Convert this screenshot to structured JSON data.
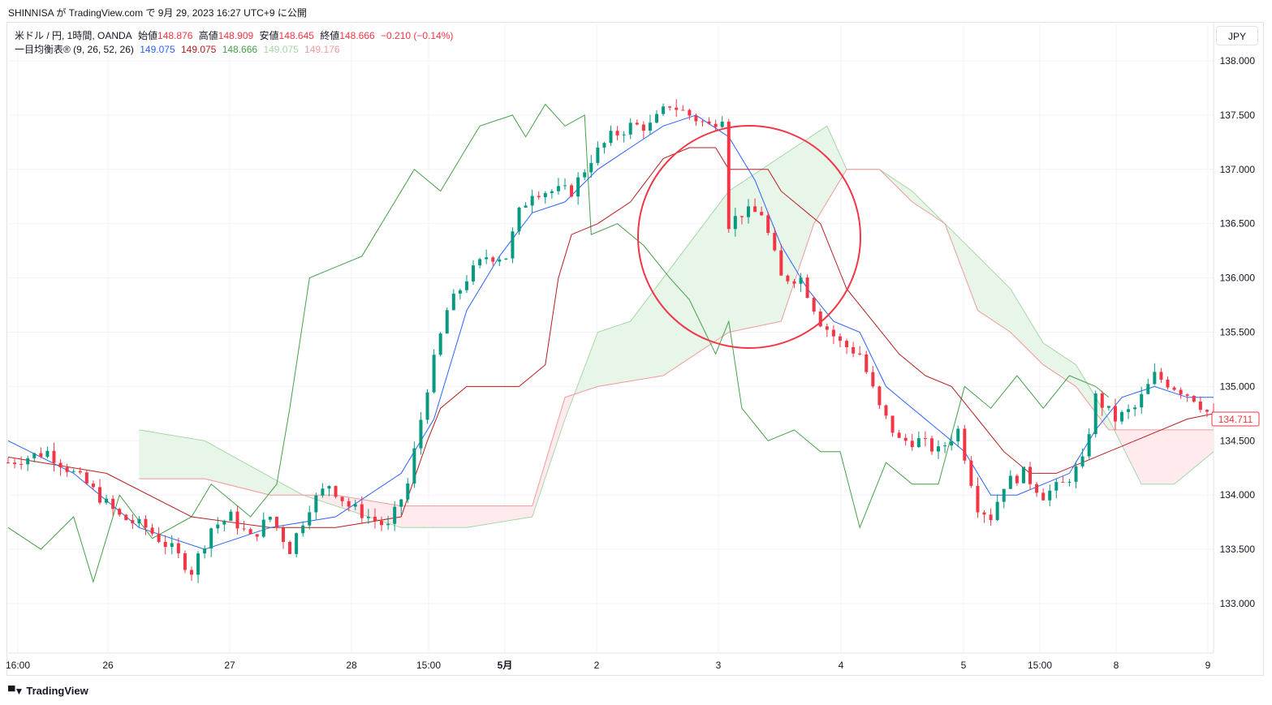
{
  "caption": "SHINNISA が TradingView.com で 9月 29, 2023 16:27 UTC+9 に公開",
  "legend": {
    "symbol": "米ドル / 円, 1時間, OANDA",
    "open_label": "始値",
    "open": "148.876",
    "high_label": "高値",
    "high": "148.909",
    "low_label": "安値",
    "low": "148.645",
    "close_label": "終値",
    "close": "148.666",
    "change": "−0.210 (−0.14%)",
    "ichimoku_name": "一目均衡表® (9, 26, 52, 26)",
    "tenkan": "149.075",
    "kijun": "149.075",
    "chikou": "148.666",
    "span_a": "149.075",
    "span_b": "149.176"
  },
  "currency_button": "JPY",
  "price_label": "134.711",
  "footer_brand": "TradingView",
  "colors": {
    "up": "#089981",
    "down": "#f23645",
    "tenkan": "#2962ff",
    "kijun": "#b71c1c",
    "chikou": "#43a047",
    "cloud_bull": "#e8f5e9",
    "cloud_bear": "#ffebee",
    "highlight_circle": "#f23645"
  },
  "chart_data": {
    "type": "candlestick",
    "title": "",
    "ylim": [
      132.6,
      138.3
    ],
    "y_ticks": [
      "133.000",
      "133.500",
      "134.000",
      "134.500",
      "135.000",
      "135.500",
      "136.000",
      "136.500",
      "137.000",
      "137.500",
      "138.000"
    ],
    "x_ticks": [
      "16:00",
      "26",
      "27",
      "28",
      "15:00",
      "5月",
      "2",
      "3",
      "4",
      "5",
      "15:00",
      "8",
      "9"
    ],
    "legend_position": "top-left",
    "grid": true,
    "annotation": "circle around the sharp drop on the 3rd",
    "close_path": [
      {
        "x": 0,
        "y": 134.3
      },
      {
        "x": 6,
        "y": 134.4
      },
      {
        "x": 12,
        "y": 134.1
      },
      {
        "x": 17,
        "y": 133.8
      },
      {
        "x": 21,
        "y": 133.7
      },
      {
        "x": 25,
        "y": 133.5
      },
      {
        "x": 28,
        "y": 133.3
      },
      {
        "x": 31,
        "y": 133.7
      },
      {
        "x": 34,
        "y": 133.8
      },
      {
        "x": 37,
        "y": 133.6
      },
      {
        "x": 40,
        "y": 133.8
      },
      {
        "x": 43,
        "y": 133.5
      },
      {
        "x": 46,
        "y": 133.9
      },
      {
        "x": 49,
        "y": 134.1
      },
      {
        "x": 52,
        "y": 133.9
      },
      {
        "x": 55,
        "y": 133.8
      },
      {
        "x": 58,
        "y": 133.7
      },
      {
        "x": 61,
        "y": 134.1
      },
      {
        "x": 64,
        "y": 135.0
      },
      {
        "x": 67,
        "y": 135.7
      },
      {
        "x": 70,
        "y": 136.0
      },
      {
        "x": 73,
        "y": 136.2
      },
      {
        "x": 76,
        "y": 136.2
      },
      {
        "x": 78,
        "y": 136.6
      },
      {
        "x": 80,
        "y": 136.8
      },
      {
        "x": 83,
        "y": 136.8
      },
      {
        "x": 86,
        "y": 136.8
      },
      {
        "x": 89,
        "y": 137.1
      },
      {
        "x": 92,
        "y": 137.3
      },
      {
        "x": 95,
        "y": 137.4
      },
      {
        "x": 98,
        "y": 137.4
      },
      {
        "x": 101,
        "y": 137.6
      },
      {
        "x": 104,
        "y": 137.5
      },
      {
        "x": 107,
        "y": 137.4
      },
      {
        "x": 109,
        "y": 137.5
      },
      {
        "x": 110,
        "y": 136.5
      },
      {
        "x": 112,
        "y": 136.6
      },
      {
        "x": 115,
        "y": 136.6
      },
      {
        "x": 118,
        "y": 136.0
      },
      {
        "x": 121,
        "y": 136.0
      },
      {
        "x": 124,
        "y": 135.6
      },
      {
        "x": 127,
        "y": 135.4
      },
      {
        "x": 130,
        "y": 135.3
      },
      {
        "x": 133,
        "y": 134.8
      },
      {
        "x": 136,
        "y": 134.5
      },
      {
        "x": 139,
        "y": 134.5
      },
      {
        "x": 142,
        "y": 134.4
      },
      {
        "x": 145,
        "y": 134.6
      },
      {
        "x": 148,
        "y": 133.9
      },
      {
        "x": 150,
        "y": 133.8
      },
      {
        "x": 152,
        "y": 134.1
      },
      {
        "x": 155,
        "y": 134.2
      },
      {
        "x": 158,
        "y": 134.0
      },
      {
        "x": 161,
        "y": 134.1
      },
      {
        "x": 164,
        "y": 134.3
      },
      {
        "x": 166,
        "y": 134.9
      },
      {
        "x": 169,
        "y": 134.7
      },
      {
        "x": 172,
        "y": 134.8
      },
      {
        "x": 175,
        "y": 135.1
      },
      {
        "x": 178,
        "y": 135.0
      },
      {
        "x": 181,
        "y": 134.9
      },
      {
        "x": 184,
        "y": 134.7
      }
    ],
    "tenkan_path": [
      {
        "x": 0,
        "y": 134.5
      },
      {
        "x": 10,
        "y": 134.2
      },
      {
        "x": 20,
        "y": 133.7
      },
      {
        "x": 30,
        "y": 133.5
      },
      {
        "x": 40,
        "y": 133.7
      },
      {
        "x": 50,
        "y": 133.8
      },
      {
        "x": 60,
        "y": 134.2
      },
      {
        "x": 65,
        "y": 134.7
      },
      {
        "x": 70,
        "y": 135.7
      },
      {
        "x": 75,
        "y": 136.2
      },
      {
        "x": 80,
        "y": 136.6
      },
      {
        "x": 85,
        "y": 136.7
      },
      {
        "x": 90,
        "y": 137.0
      },
      {
        "x": 95,
        "y": 137.2
      },
      {
        "x": 100,
        "y": 137.4
      },
      {
        "x": 105,
        "y": 137.5
      },
      {
        "x": 110,
        "y": 137.3
      },
      {
        "x": 114,
        "y": 136.9
      },
      {
        "x": 118,
        "y": 136.3
      },
      {
        "x": 122,
        "y": 135.9
      },
      {
        "x": 126,
        "y": 135.6
      },
      {
        "x": 130,
        "y": 135.5
      },
      {
        "x": 134,
        "y": 135.0
      },
      {
        "x": 138,
        "y": 134.8
      },
      {
        "x": 142,
        "y": 134.6
      },
      {
        "x": 146,
        "y": 134.4
      },
      {
        "x": 150,
        "y": 134.0
      },
      {
        "x": 154,
        "y": 134.0
      },
      {
        "x": 158,
        "y": 134.1
      },
      {
        "x": 162,
        "y": 134.2
      },
      {
        "x": 166,
        "y": 134.6
      },
      {
        "x": 170,
        "y": 134.9
      },
      {
        "x": 175,
        "y": 135.0
      },
      {
        "x": 180,
        "y": 134.9
      },
      {
        "x": 184,
        "y": 134.9
      }
    ],
    "kijun_path": [
      {
        "x": 0,
        "y": 134.35
      },
      {
        "x": 15,
        "y": 134.2
      },
      {
        "x": 28,
        "y": 133.8
      },
      {
        "x": 40,
        "y": 133.7
      },
      {
        "x": 50,
        "y": 133.7
      },
      {
        "x": 60,
        "y": 133.8
      },
      {
        "x": 64,
        "y": 134.5
      },
      {
        "x": 66,
        "y": 134.8
      },
      {
        "x": 70,
        "y": 135.0
      },
      {
        "x": 78,
        "y": 135.0
      },
      {
        "x": 82,
        "y": 135.2
      },
      {
        "x": 84,
        "y": 136.0
      },
      {
        "x": 86,
        "y": 136.4
      },
      {
        "x": 90,
        "y": 136.5
      },
      {
        "x": 95,
        "y": 136.7
      },
      {
        "x": 100,
        "y": 137.1
      },
      {
        "x": 104,
        "y": 137.2
      },
      {
        "x": 108,
        "y": 137.2
      },
      {
        "x": 110,
        "y": 137.0
      },
      {
        "x": 116,
        "y": 137.0
      },
      {
        "x": 118,
        "y": 136.8
      },
      {
        "x": 124,
        "y": 136.5
      },
      {
        "x": 128,
        "y": 135.9
      },
      {
        "x": 132,
        "y": 135.6
      },
      {
        "x": 136,
        "y": 135.3
      },
      {
        "x": 140,
        "y": 135.1
      },
      {
        "x": 144,
        "y": 135.0
      },
      {
        "x": 148,
        "y": 134.7
      },
      {
        "x": 152,
        "y": 134.4
      },
      {
        "x": 156,
        "y": 134.2
      },
      {
        "x": 160,
        "y": 134.2
      },
      {
        "x": 164,
        "y": 134.3
      },
      {
        "x": 168,
        "y": 134.4
      },
      {
        "x": 172,
        "y": 134.5
      },
      {
        "x": 176,
        "y": 134.6
      },
      {
        "x": 180,
        "y": 134.7
      },
      {
        "x": 184,
        "y": 134.75
      }
    ],
    "chikou_path": [
      {
        "x": 0,
        "y": 133.7
      },
      {
        "x": 5,
        "y": 133.5
      },
      {
        "x": 10,
        "y": 133.8
      },
      {
        "x": 13,
        "y": 133.2
      },
      {
        "x": 17,
        "y": 134.0
      },
      {
        "x": 22,
        "y": 133.6
      },
      {
        "x": 28,
        "y": 133.8
      },
      {
        "x": 31,
        "y": 134.1
      },
      {
        "x": 37,
        "y": 133.8
      },
      {
        "x": 41,
        "y": 134.1
      },
      {
        "x": 43,
        "y": 134.8
      },
      {
        "x": 46,
        "y": 136.0
      },
      {
        "x": 50,
        "y": 136.1
      },
      {
        "x": 54,
        "y": 136.2
      },
      {
        "x": 58,
        "y": 136.6
      },
      {
        "x": 62,
        "y": 137.0
      },
      {
        "x": 66,
        "y": 136.8
      },
      {
        "x": 70,
        "y": 137.2
      },
      {
        "x": 72,
        "y": 137.4
      },
      {
        "x": 77,
        "y": 137.5
      },
      {
        "x": 79,
        "y": 137.3
      },
      {
        "x": 82,
        "y": 137.6
      },
      {
        "x": 85,
        "y": 137.4
      },
      {
        "x": 88,
        "y": 137.5
      },
      {
        "x": 89,
        "y": 136.4
      },
      {
        "x": 93,
        "y": 136.5
      },
      {
        "x": 97,
        "y": 136.3
      },
      {
        "x": 101,
        "y": 136.0
      },
      {
        "x": 104,
        "y": 135.8
      },
      {
        "x": 108,
        "y": 135.3
      },
      {
        "x": 110,
        "y": 135.6
      },
      {
        "x": 112,
        "y": 134.8
      },
      {
        "x": 116,
        "y": 134.5
      },
      {
        "x": 120,
        "y": 134.6
      },
      {
        "x": 124,
        "y": 134.4
      },
      {
        "x": 127,
        "y": 134.4
      },
      {
        "x": 130,
        "y": 133.7
      },
      {
        "x": 134,
        "y": 134.3
      },
      {
        "x": 138,
        "y": 134.1
      },
      {
        "x": 142,
        "y": 134.1
      },
      {
        "x": 146,
        "y": 135.0
      },
      {
        "x": 150,
        "y": 134.8
      },
      {
        "x": 154,
        "y": 135.1
      },
      {
        "x": 158,
        "y": 134.8
      },
      {
        "x": 162,
        "y": 135.1
      },
      {
        "x": 166,
        "y": 135.0
      },
      {
        "x": 168,
        "y": 134.9
      }
    ],
    "cloud_a": [
      {
        "x": 20,
        "y": 134.6
      },
      {
        "x": 30,
        "y": 134.5
      },
      {
        "x": 45,
        "y": 134.0
      },
      {
        "x": 60,
        "y": 133.7
      },
      {
        "x": 70,
        "y": 133.7
      },
      {
        "x": 80,
        "y": 133.8
      },
      {
        "x": 85,
        "y": 134.7
      },
      {
        "x": 90,
        "y": 135.5
      },
      {
        "x": 95,
        "y": 135.6
      },
      {
        "x": 105,
        "y": 136.4
      },
      {
        "x": 110,
        "y": 136.8
      },
      {
        "x": 115,
        "y": 137.0
      },
      {
        "x": 120,
        "y": 137.2
      },
      {
        "x": 125,
        "y": 137.4
      },
      {
        "x": 128,
        "y": 137.0
      },
      {
        "x": 133,
        "y": 137.0
      },
      {
        "x": 138,
        "y": 136.8
      },
      {
        "x": 143,
        "y": 136.5
      },
      {
        "x": 148,
        "y": 136.2
      },
      {
        "x": 153,
        "y": 135.9
      },
      {
        "x": 158,
        "y": 135.4
      },
      {
        "x": 163,
        "y": 135.2
      },
      {
        "x": 168,
        "y": 134.7
      },
      {
        "x": 173,
        "y": 134.1
      },
      {
        "x": 178,
        "y": 134.1
      },
      {
        "x": 184,
        "y": 134.4
      }
    ],
    "cloud_b": [
      {
        "x": 20,
        "y": 134.15
      },
      {
        "x": 30,
        "y": 134.15
      },
      {
        "x": 40,
        "y": 134.0
      },
      {
        "x": 50,
        "y": 134.0
      },
      {
        "x": 60,
        "y": 133.9
      },
      {
        "x": 70,
        "y": 133.9
      },
      {
        "x": 80,
        "y": 133.9
      },
      {
        "x": 85,
        "y": 134.9
      },
      {
        "x": 90,
        "y": 135.0
      },
      {
        "x": 100,
        "y": 135.1
      },
      {
        "x": 110,
        "y": 135.5
      },
      {
        "x": 118,
        "y": 135.6
      },
      {
        "x": 123,
        "y": 136.5
      },
      {
        "x": 128,
        "y": 137.0
      },
      {
        "x": 133,
        "y": 137.0
      },
      {
        "x": 138,
        "y": 136.7
      },
      {
        "x": 143,
        "y": 136.5
      },
      {
        "x": 148,
        "y": 135.7
      },
      {
        "x": 153,
        "y": 135.5
      },
      {
        "x": 158,
        "y": 135.2
      },
      {
        "x": 163,
        "y": 135.0
      },
      {
        "x": 168,
        "y": 134.6
      },
      {
        "x": 173,
        "y": 134.6
      },
      {
        "x": 178,
        "y": 134.6
      },
      {
        "x": 184,
        "y": 134.6
      }
    ]
  }
}
